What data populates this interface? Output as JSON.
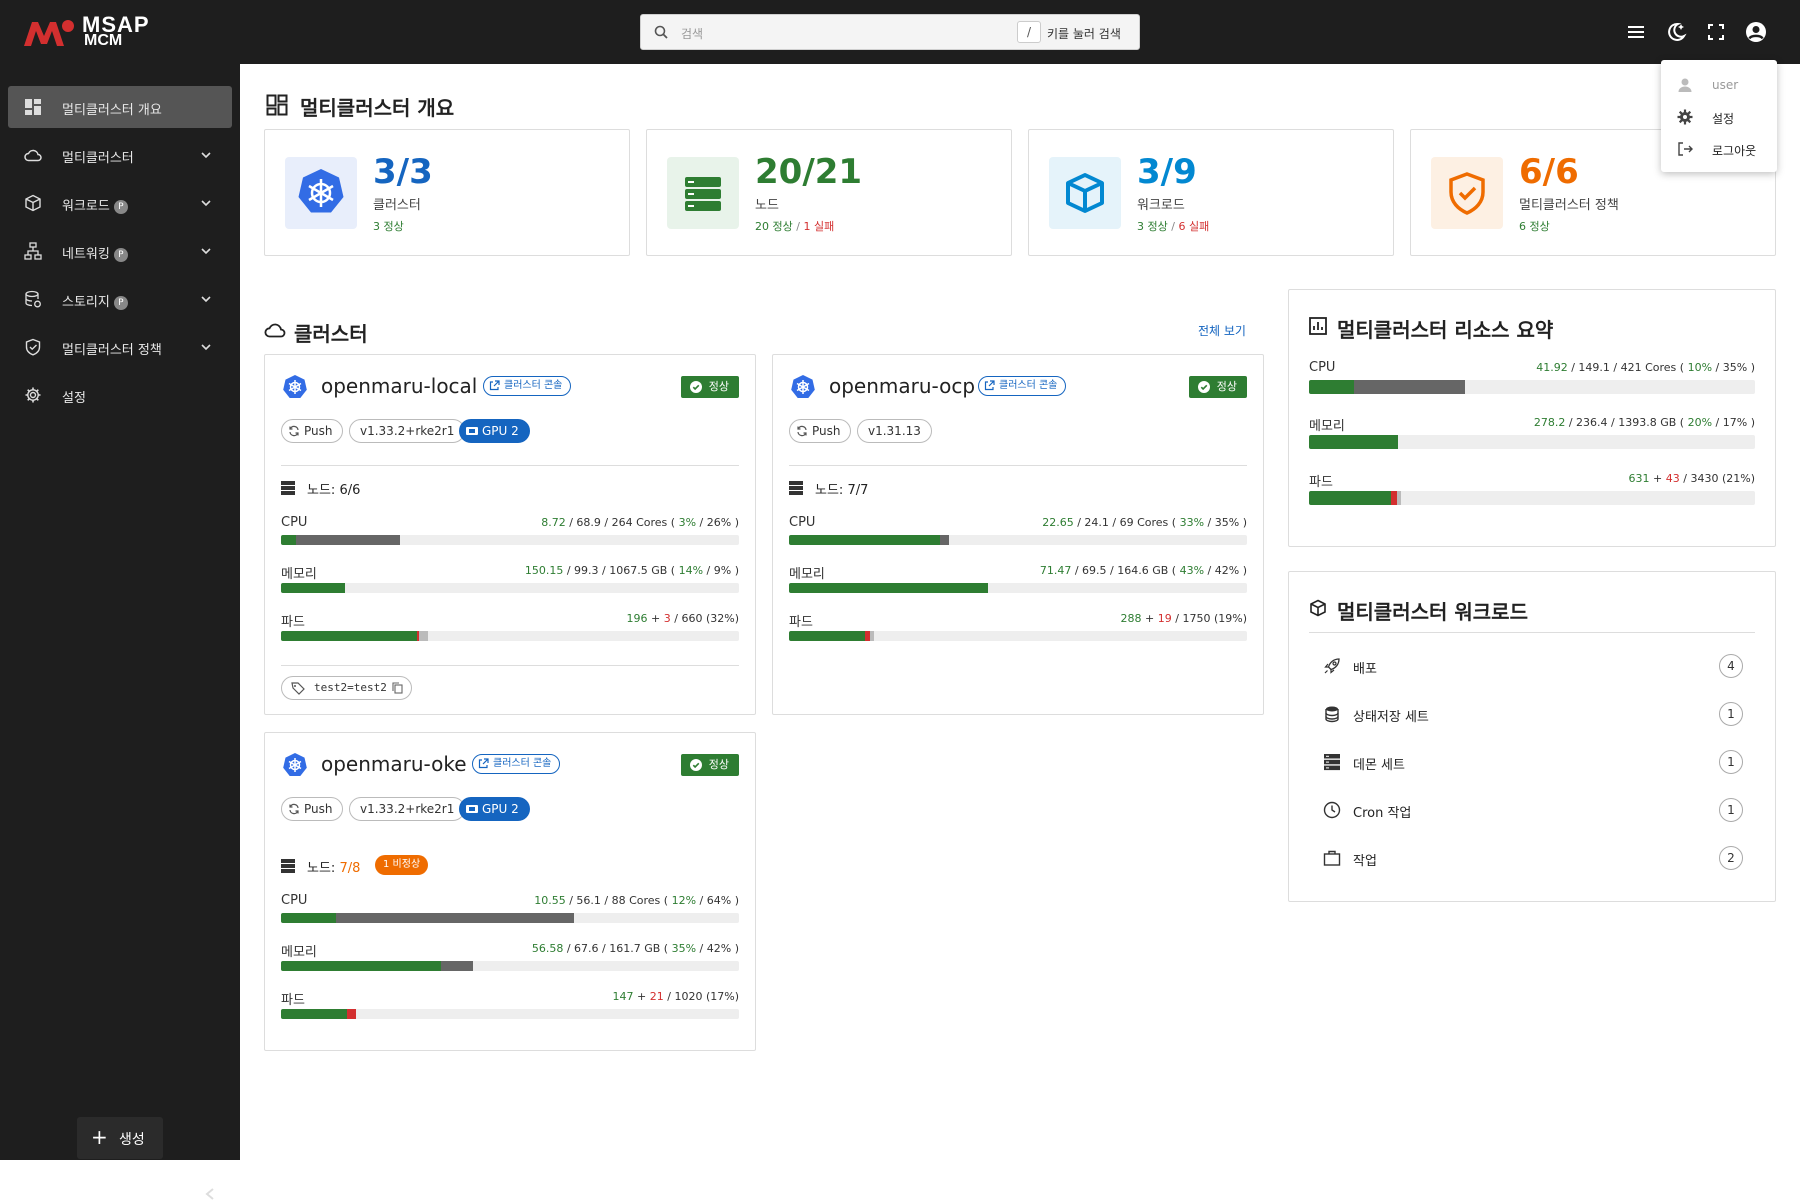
{
  "app": {
    "logo_line1": "MSAP",
    "logo_line2": "MCM"
  },
  "search": {
    "placeholder": "검색",
    "shortcut_key": "/",
    "shortcut_hint": "키를 눌러 검색"
  },
  "sidebar": {
    "items": [
      {
        "label": "멀티클러스터 개요",
        "icon": "dashboard-icon",
        "active": true
      },
      {
        "label": "멀티클러스터",
        "icon": "cloud-icon",
        "expandable": true
      },
      {
        "label": "워크로드",
        "icon": "cube-icon",
        "badge": "P",
        "expandable": true
      },
      {
        "label": "네트워킹",
        "icon": "network-icon",
        "badge": "P",
        "expandable": true
      },
      {
        "label": "스토리지",
        "icon": "storage-icon",
        "badge": "P",
        "expandable": true
      },
      {
        "label": "멀티클러스터 정책",
        "icon": "shield-icon",
        "expandable": true
      },
      {
        "label": "설정",
        "icon": "gear-icon"
      }
    ],
    "create_label": "생성"
  },
  "user_menu": {
    "user": "user",
    "settings": "설정",
    "logout": "로그아웃"
  },
  "page_title": "멀티클러스터 개요",
  "summary": [
    {
      "value": "3/3",
      "label": "클러스터",
      "ok": "3 정상",
      "fail": "",
      "color": "#1565c0"
    },
    {
      "value": "20/21",
      "label": "노드",
      "ok": "20 정상",
      "sep": "/",
      "fail": "1 실패",
      "color": "#2e7d32"
    },
    {
      "value": "3/9",
      "label": "워크로드",
      "ok": "3 정상",
      "sep": "/",
      "fail": "6 실패",
      "color": "#0288d1"
    },
    {
      "value": "6/6",
      "label": "멀티클러스터 정책",
      "ok": "6 정상",
      "fail": "",
      "color": "#ef6c00"
    }
  ],
  "clusters_section": {
    "title": "클러스터",
    "view_all": "전체 보기"
  },
  "clusters": [
    {
      "name": "openmaru-local",
      "console": "클러스터 콘솔",
      "status": "정상",
      "mode": "Push",
      "version": "v1.33.2+rke2r1",
      "gpu": "GPU 2",
      "nodes_label": "노드:",
      "nodes_value": "6/6",
      "cpu": {
        "label": "CPU",
        "used": "8.72",
        "req": "68.9",
        "total": "264 Cores",
        "p1": "3%",
        "p2": "26%",
        "used_frac": 0.033,
        "req_frac": 0.26
      },
      "mem": {
        "label": "메모리",
        "used": "150.15",
        "req": "99.3",
        "total": "1067.5 GB",
        "p1": "14%",
        "p2": "9%",
        "used_frac": 0.14,
        "req_frac": 0.09
      },
      "pods": {
        "label": "파드",
        "running": "196",
        "failed": "3",
        "total": "660",
        "pct": "(32%)",
        "run_frac": 0.297,
        "fail_frac": 0.005,
        "pend_frac": 0.02
      },
      "tag": "test2=test2"
    },
    {
      "name": "openmaru-ocp",
      "console": "클러스터 콘솔",
      "status": "정상",
      "mode": "Push",
      "version": "v1.31.13",
      "nodes_label": "노드:",
      "nodes_value": "7/7",
      "cpu": {
        "label": "CPU",
        "used": "22.65",
        "req": "24.1",
        "total": "69 Cores",
        "p1": "33%",
        "p2": "35%",
        "used_frac": 0.33,
        "req_frac": 0.35
      },
      "mem": {
        "label": "메모리",
        "used": "71.47",
        "req": "69.5",
        "total": "164.6 GB",
        "p1": "43%",
        "p2": "42%",
        "used_frac": 0.434,
        "req_frac": 0.42
      },
      "pods": {
        "label": "파드",
        "running": "288",
        "failed": "19",
        "total": "1750",
        "pct": "(19%)",
        "run_frac": 0.165,
        "fail_frac": 0.011,
        "pend_frac": 0.01
      }
    },
    {
      "name": "openmaru-oke",
      "console": "클러스터 콘솔",
      "status": "정상",
      "mode": "Push",
      "version": "v1.33.2+rke2r1",
      "gpu": "GPU 2",
      "nodes_label": "노드:",
      "nodes_value": "7/8",
      "nodes_warn": "1 비정상",
      "cpu": {
        "label": "CPU",
        "used": "10.55",
        "req": "56.1",
        "total": "88 Cores",
        "p1": "12%",
        "p2": "64%",
        "used_frac": 0.12,
        "req_frac": 0.64
      },
      "mem": {
        "label": "메모리",
        "used": "56.58",
        "req": "67.6",
        "total": "161.7 GB",
        "p1": "35%",
        "p2": "42%",
        "used_frac": 0.35,
        "req_frac": 0.42
      },
      "pods": {
        "label": "파드",
        "running": "147",
        "failed": "21",
        "total": "1020",
        "pct": "(17%)",
        "run_frac": 0.144,
        "fail_frac": 0.02,
        "pend_frac": 0.0
      }
    }
  ],
  "resource_summary": {
    "title": "멀티클러스터 리소스 요약",
    "cpu": {
      "label": "CPU",
      "used": "41.92",
      "req": "149.1",
      "total": "421 Cores",
      "p1": "10%",
      "p2": "35%",
      "used_frac": 0.1,
      "req_frac": 0.35
    },
    "mem": {
      "label": "메모리",
      "used": "278.2",
      "req": "236.4",
      "total": "1393.8 GB",
      "p1": "20%",
      "p2": "17%",
      "used_frac": 0.2,
      "req_frac": 0.17
    },
    "pods": {
      "label": "파드",
      "running": "631",
      "failed": "43",
      "total": "3430",
      "pct": "(21%)",
      "run_frac": 0.184,
      "fail_frac": 0.0125,
      "pend_frac": 0.01
    }
  },
  "workloads": {
    "title": "멀티클러스터 워크로드",
    "items": [
      {
        "label": "배포",
        "count": "4",
        "icon": "rocket-icon"
      },
      {
        "label": "상태저장 세트",
        "count": "1",
        "icon": "database-icon"
      },
      {
        "label": "데몬 세트",
        "count": "1",
        "icon": "server-icon"
      },
      {
        "label": "Cron 작업",
        "count": "1",
        "icon": "clock-icon"
      },
      {
        "label": "작업",
        "count": "2",
        "icon": "briefcase-icon"
      }
    ]
  }
}
